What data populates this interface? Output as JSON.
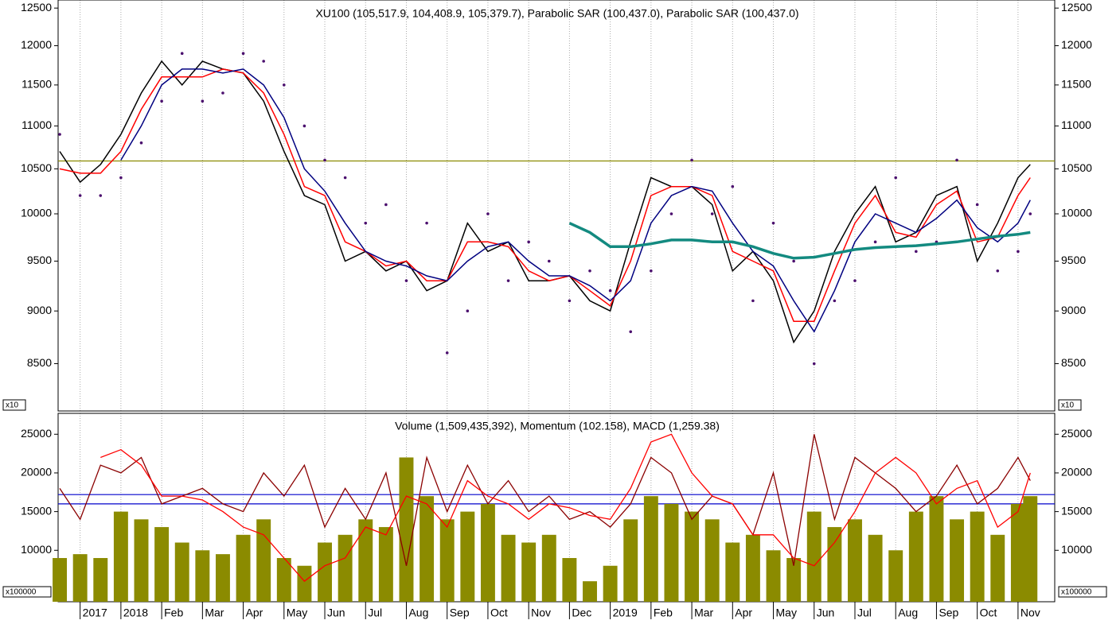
{
  "chart_data": [
    {
      "type": "line",
      "title": "XU100 (105,517.9, 104,408.9, 105,379.7), Parabolic SAR (100,437.0), Parabolic SAR (100,437.0)",
      "unit_label": "x10",
      "log_scale": true,
      "grid": true,
      "xlim": [
        -1.54,
        22.9
      ],
      "ylim": [
        8075,
        12610
      ],
      "yticks": [
        8500,
        9000,
        9500,
        10000,
        10500,
        11000,
        11500,
        12000,
        12500
      ],
      "hlines": [
        {
          "value": 10590,
          "color": "#8b8b00"
        }
      ],
      "x": [
        -1.5,
        -1,
        -0.5,
        0,
        0.5,
        1,
        1.5,
        2,
        2.5,
        3,
        3.5,
        4,
        4.5,
        5,
        5.5,
        6,
        6.5,
        7,
        7.5,
        8,
        8.5,
        9,
        9.5,
        10,
        10.5,
        11,
        11.5,
        12,
        12.5,
        13,
        13.5,
        14,
        14.5,
        15,
        15.5,
        16,
        16.5,
        17,
        17.5,
        18,
        18.5,
        19,
        19.5,
        20,
        20.5,
        21,
        21.5,
        22,
        22.3
      ],
      "series": [
        {
          "name": "XU100",
          "style": "line",
          "color": "#000000",
          "width": 1.5,
          "values": [
            10700,
            10350,
            10550,
            10900,
            11400,
            11800,
            11500,
            11800,
            11700,
            11650,
            11300,
            10700,
            10200,
            10100,
            9500,
            9600,
            9400,
            9500,
            9200,
            9300,
            9900,
            9600,
            9700,
            9300,
            9300,
            9350,
            9100,
            9000,
            9700,
            10400,
            10300,
            10300,
            10100,
            9400,
            9600,
            9300,
            8700,
            9000,
            9600,
            10000,
            10300,
            9700,
            9800,
            10200,
            10300,
            9500,
            9900,
            10400,
            10550
          ]
        },
        {
          "name": "Parabolic SAR",
          "style": "dots",
          "color": "#4b0f6e",
          "width": 1,
          "values": [
            10900,
            10200,
            10200,
            10400,
            10800,
            11300,
            11900,
            11300,
            11400,
            11900,
            11800,
            11500,
            11000,
            10600,
            10400,
            9900,
            10100,
            9300,
            9900,
            8600,
            9000,
            10000,
            9300,
            9700,
            9500,
            9100,
            9400,
            9200,
            8800,
            9400,
            10000,
            10600,
            10000,
            10300,
            9100,
            9900,
            9500,
            8500,
            9100,
            9300,
            9700,
            10400,
            9600,
            9700,
            10600,
            10100,
            9400,
            9600,
            10000
          ]
        },
        {
          "style": "line",
          "color": "#ff0000",
          "width": 1.5,
          "values": [
            10500,
            10450,
            10450,
            10700,
            11200,
            11600,
            11600,
            11600,
            11700,
            11650,
            11400,
            10900,
            10300,
            10200,
            9700,
            9600,
            9450,
            9500,
            9300,
            9300,
            9700,
            9700,
            9650,
            9400,
            9300,
            9350,
            9200,
            9050,
            9500,
            10200,
            10300,
            10300,
            10200,
            9600,
            9500,
            9400,
            8900,
            8900,
            9400,
            9900,
            10200,
            9800,
            9750,
            10100,
            10250,
            9700,
            9750,
            10200,
            10400
          ]
        },
        {
          "style": "line",
          "color": "#000080",
          "width": 1.5,
          "values": [
            null,
            null,
            null,
            10600,
            11000,
            11500,
            11700,
            11700,
            11650,
            11700,
            11500,
            11100,
            10500,
            10250,
            9900,
            9600,
            9500,
            9450,
            9350,
            9300,
            9500,
            9650,
            9700,
            9500,
            9350,
            9350,
            9250,
            9100,
            9300,
            9900,
            10200,
            10300,
            10250,
            9900,
            9600,
            9450,
            9100,
            8800,
            9200,
            9700,
            10000,
            9900,
            9800,
            9950,
            10150,
            9850,
            9700,
            9900,
            10150
          ]
        },
        {
          "style": "line",
          "color": "#138a80",
          "width": 3.5,
          "values": [
            null,
            null,
            null,
            null,
            null,
            null,
            null,
            null,
            null,
            null,
            null,
            null,
            null,
            null,
            null,
            null,
            null,
            null,
            null,
            null,
            null,
            null,
            null,
            null,
            null,
            9900,
            9800,
            9650,
            9650,
            9680,
            9720,
            9720,
            9700,
            9700,
            9650,
            9580,
            9530,
            9540,
            9580,
            9620,
            9640,
            9650,
            9660,
            9680,
            9700,
            9730,
            9760,
            9780,
            9800
          ]
        }
      ]
    },
    {
      "type": "bar",
      "title": "Volume (1,509,435,392), Momentum (102.158), MACD (1,259.38)",
      "unit_label": "x100000",
      "grid": true,
      "xlim": [
        -1.54,
        22.9
      ],
      "ylim": [
        3350,
        27700
      ],
      "yticks": [
        10000,
        15000,
        20000,
        25000
      ],
      "xticks": [
        {
          "value": -1,
          "label": "2017"
        },
        {
          "value": 0,
          "label": "2018"
        },
        {
          "value": 1,
          "label": "Feb"
        },
        {
          "value": 2,
          "label": "Mar"
        },
        {
          "value": 3,
          "label": "Apr"
        },
        {
          "value": 4,
          "label": "May"
        },
        {
          "value": 5,
          "label": "Jun"
        },
        {
          "value": 6,
          "label": "Jul"
        },
        {
          "value": 7,
          "label": "Aug"
        },
        {
          "value": 8,
          "label": "Sep"
        },
        {
          "value": 9,
          "label": "Oct"
        },
        {
          "value": 10,
          "label": "Nov"
        },
        {
          "value": 11,
          "label": "Dec"
        },
        {
          "value": 12,
          "label": "2019"
        },
        {
          "value": 13,
          "label": "Feb"
        },
        {
          "value": 14,
          "label": "Mar"
        },
        {
          "value": 15,
          "label": "Apr"
        },
        {
          "value": 16,
          "label": "May"
        },
        {
          "value": 17,
          "label": "Jun"
        },
        {
          "value": 18,
          "label": "Jul"
        },
        {
          "value": 19,
          "label": "Aug"
        },
        {
          "value": 20,
          "label": "Sep"
        },
        {
          "value": 21,
          "label": "Oct"
        },
        {
          "value": 22,
          "label": "Nov"
        }
      ],
      "hlines": [
        {
          "value": 17200,
          "color": "#0000cc"
        },
        {
          "value": 16000,
          "color": "#0000cc"
        }
      ],
      "x": [
        -1.5,
        -1,
        -0.5,
        0,
        0.5,
        1,
        1.5,
        2,
        2.5,
        3,
        3.5,
        4,
        4.5,
        5,
        5.5,
        6,
        6.5,
        7,
        7.5,
        8,
        8.5,
        9,
        9.5,
        10,
        10.5,
        11,
        11.5,
        12,
        12.5,
        13,
        13.5,
        14,
        14.5,
        15,
        15.5,
        16,
        16.5,
        17,
        17.5,
        18,
        18.5,
        19,
        19.5,
        20,
        20.5,
        21,
        21.5,
        22,
        22.3
      ],
      "series": [
        {
          "name": "Volume",
          "style": "bar",
          "color": "#8b8b00",
          "width": 1,
          "values": [
            9000,
            9500,
            9000,
            15000,
            14000,
            13000,
            11000,
            10000,
            9500,
            12000,
            14000,
            9000,
            8000,
            11000,
            12000,
            14000,
            13000,
            22000,
            17000,
            14000,
            15000,
            16000,
            12000,
            11000,
            12000,
            9000,
            6000,
            8000,
            14000,
            17000,
            16000,
            15000,
            14000,
            11000,
            12000,
            10000,
            9000,
            15000,
            13000,
            14000,
            12000,
            10000,
            15000,
            17000,
            14000,
            15000,
            12000,
            16000,
            17000
          ]
        },
        {
          "name": "Momentum",
          "style": "line",
          "color": "#8b0000",
          "width": 1.3,
          "values": [
            18000,
            14000,
            21000,
            20000,
            22000,
            16000,
            17000,
            18000,
            16000,
            15000,
            20000,
            17000,
            21000,
            13000,
            18000,
            14000,
            20000,
            8000,
            22000,
            15000,
            21000,
            16000,
            19000,
            15000,
            17000,
            14000,
            15000,
            13000,
            16000,
            22000,
            20000,
            14000,
            17000,
            16000,
            12000,
            20000,
            8000,
            25000,
            14000,
            22000,
            20000,
            18000,
            15000,
            17000,
            21000,
            16000,
            18000,
            22000,
            19000
          ]
        },
        {
          "name": "MACD",
          "style": "line",
          "color": "#ff0000",
          "width": 1.3,
          "values": [
            null,
            null,
            22000,
            23000,
            21000,
            17000,
            17000,
            16500,
            15000,
            13000,
            12000,
            9000,
            6000,
            8000,
            9000,
            13000,
            12000,
            17000,
            16000,
            13000,
            19000,
            17000,
            16000,
            14000,
            16000,
            15500,
            14500,
            14000,
            18000,
            24000,
            25000,
            20000,
            17000,
            16000,
            12000,
            12000,
            9000,
            8000,
            11000,
            15000,
            20000,
            22000,
            20000,
            16000,
            18000,
            19000,
            13000,
            15000,
            20000
          ]
        }
      ]
    }
  ]
}
